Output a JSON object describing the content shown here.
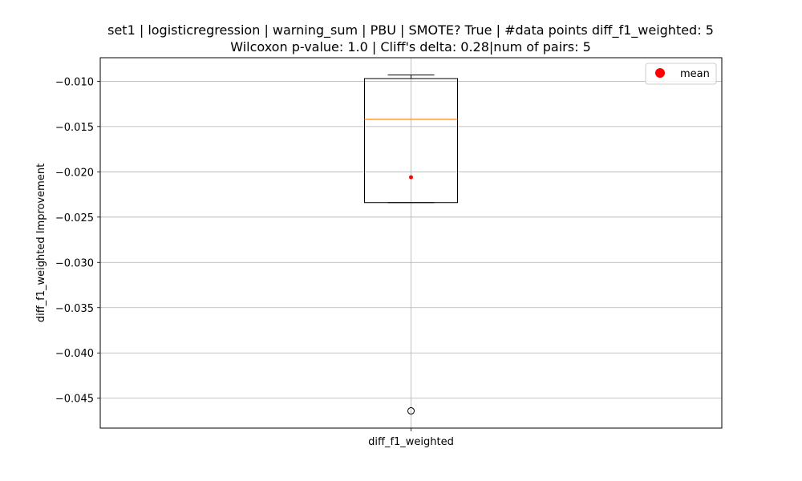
{
  "chart_data": {
    "type": "box",
    "title_lines": [
      "set1 | logisticregression | warning_sum | PBU | SMOTE? True | #data points diff_f1_weighted: 5",
      "Wilcoxon p-value: 1.0 | Cliff's delta: 0.28|num of pairs: 5"
    ],
    "xlabel": "",
    "ylabel": "diff_f1_weighted Improvement",
    "categories": [
      "diff_f1_weighted"
    ],
    "ylim": [
      -0.0483,
      -0.0074
    ],
    "yticks": [
      -0.01,
      -0.015,
      -0.02,
      -0.025,
      -0.03,
      -0.035,
      -0.04,
      -0.045
    ],
    "ytick_labels": [
      "−0.010",
      "−0.015",
      "−0.020",
      "−0.025",
      "−0.030",
      "−0.035",
      "−0.040",
      "−0.045"
    ],
    "grid": true,
    "box": {
      "whisker_high": -0.0093,
      "q3": -0.0097,
      "median": -0.0142,
      "q1": -0.0234,
      "whisker_low": -0.0234,
      "mean": -0.0206,
      "outliers": [
        -0.0464
      ]
    },
    "legend": {
      "position": "top-right",
      "entries": [
        {
          "label": "mean",
          "color": "#ff0000",
          "marker": "circle"
        }
      ]
    },
    "colors": {
      "box": "#000000",
      "median": "#ff7f0e",
      "mean": "#ff0000",
      "grid": "#b0b0b0"
    }
  }
}
